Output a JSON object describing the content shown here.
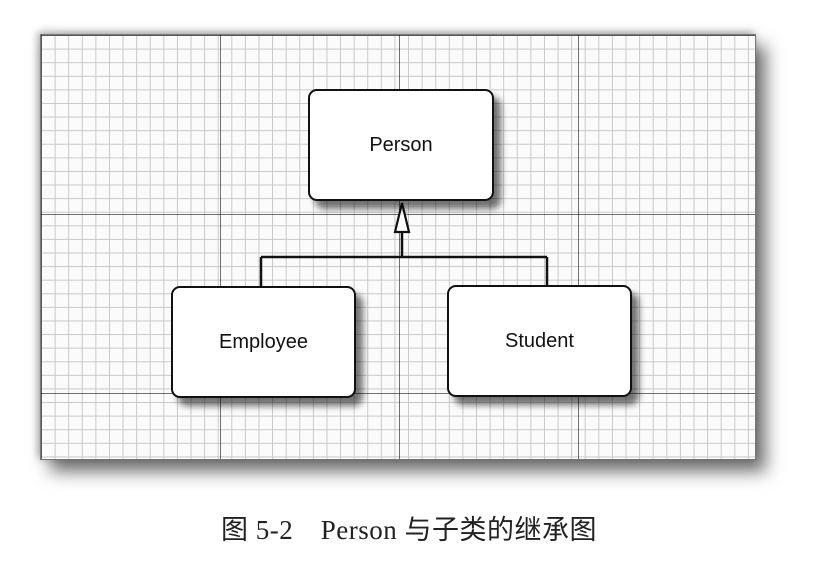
{
  "diagram": {
    "nodes": [
      {
        "id": "person",
        "label": "Person"
      },
      {
        "id": "employee",
        "label": "Employee"
      },
      {
        "id": "student",
        "label": "Student"
      }
    ],
    "edges": [
      {
        "from": "employee",
        "to": "person",
        "type": "inheritance"
      },
      {
        "from": "student",
        "to": "person",
        "type": "inheritance"
      }
    ]
  },
  "caption": "图 5-2　Person 与子类的继承图"
}
